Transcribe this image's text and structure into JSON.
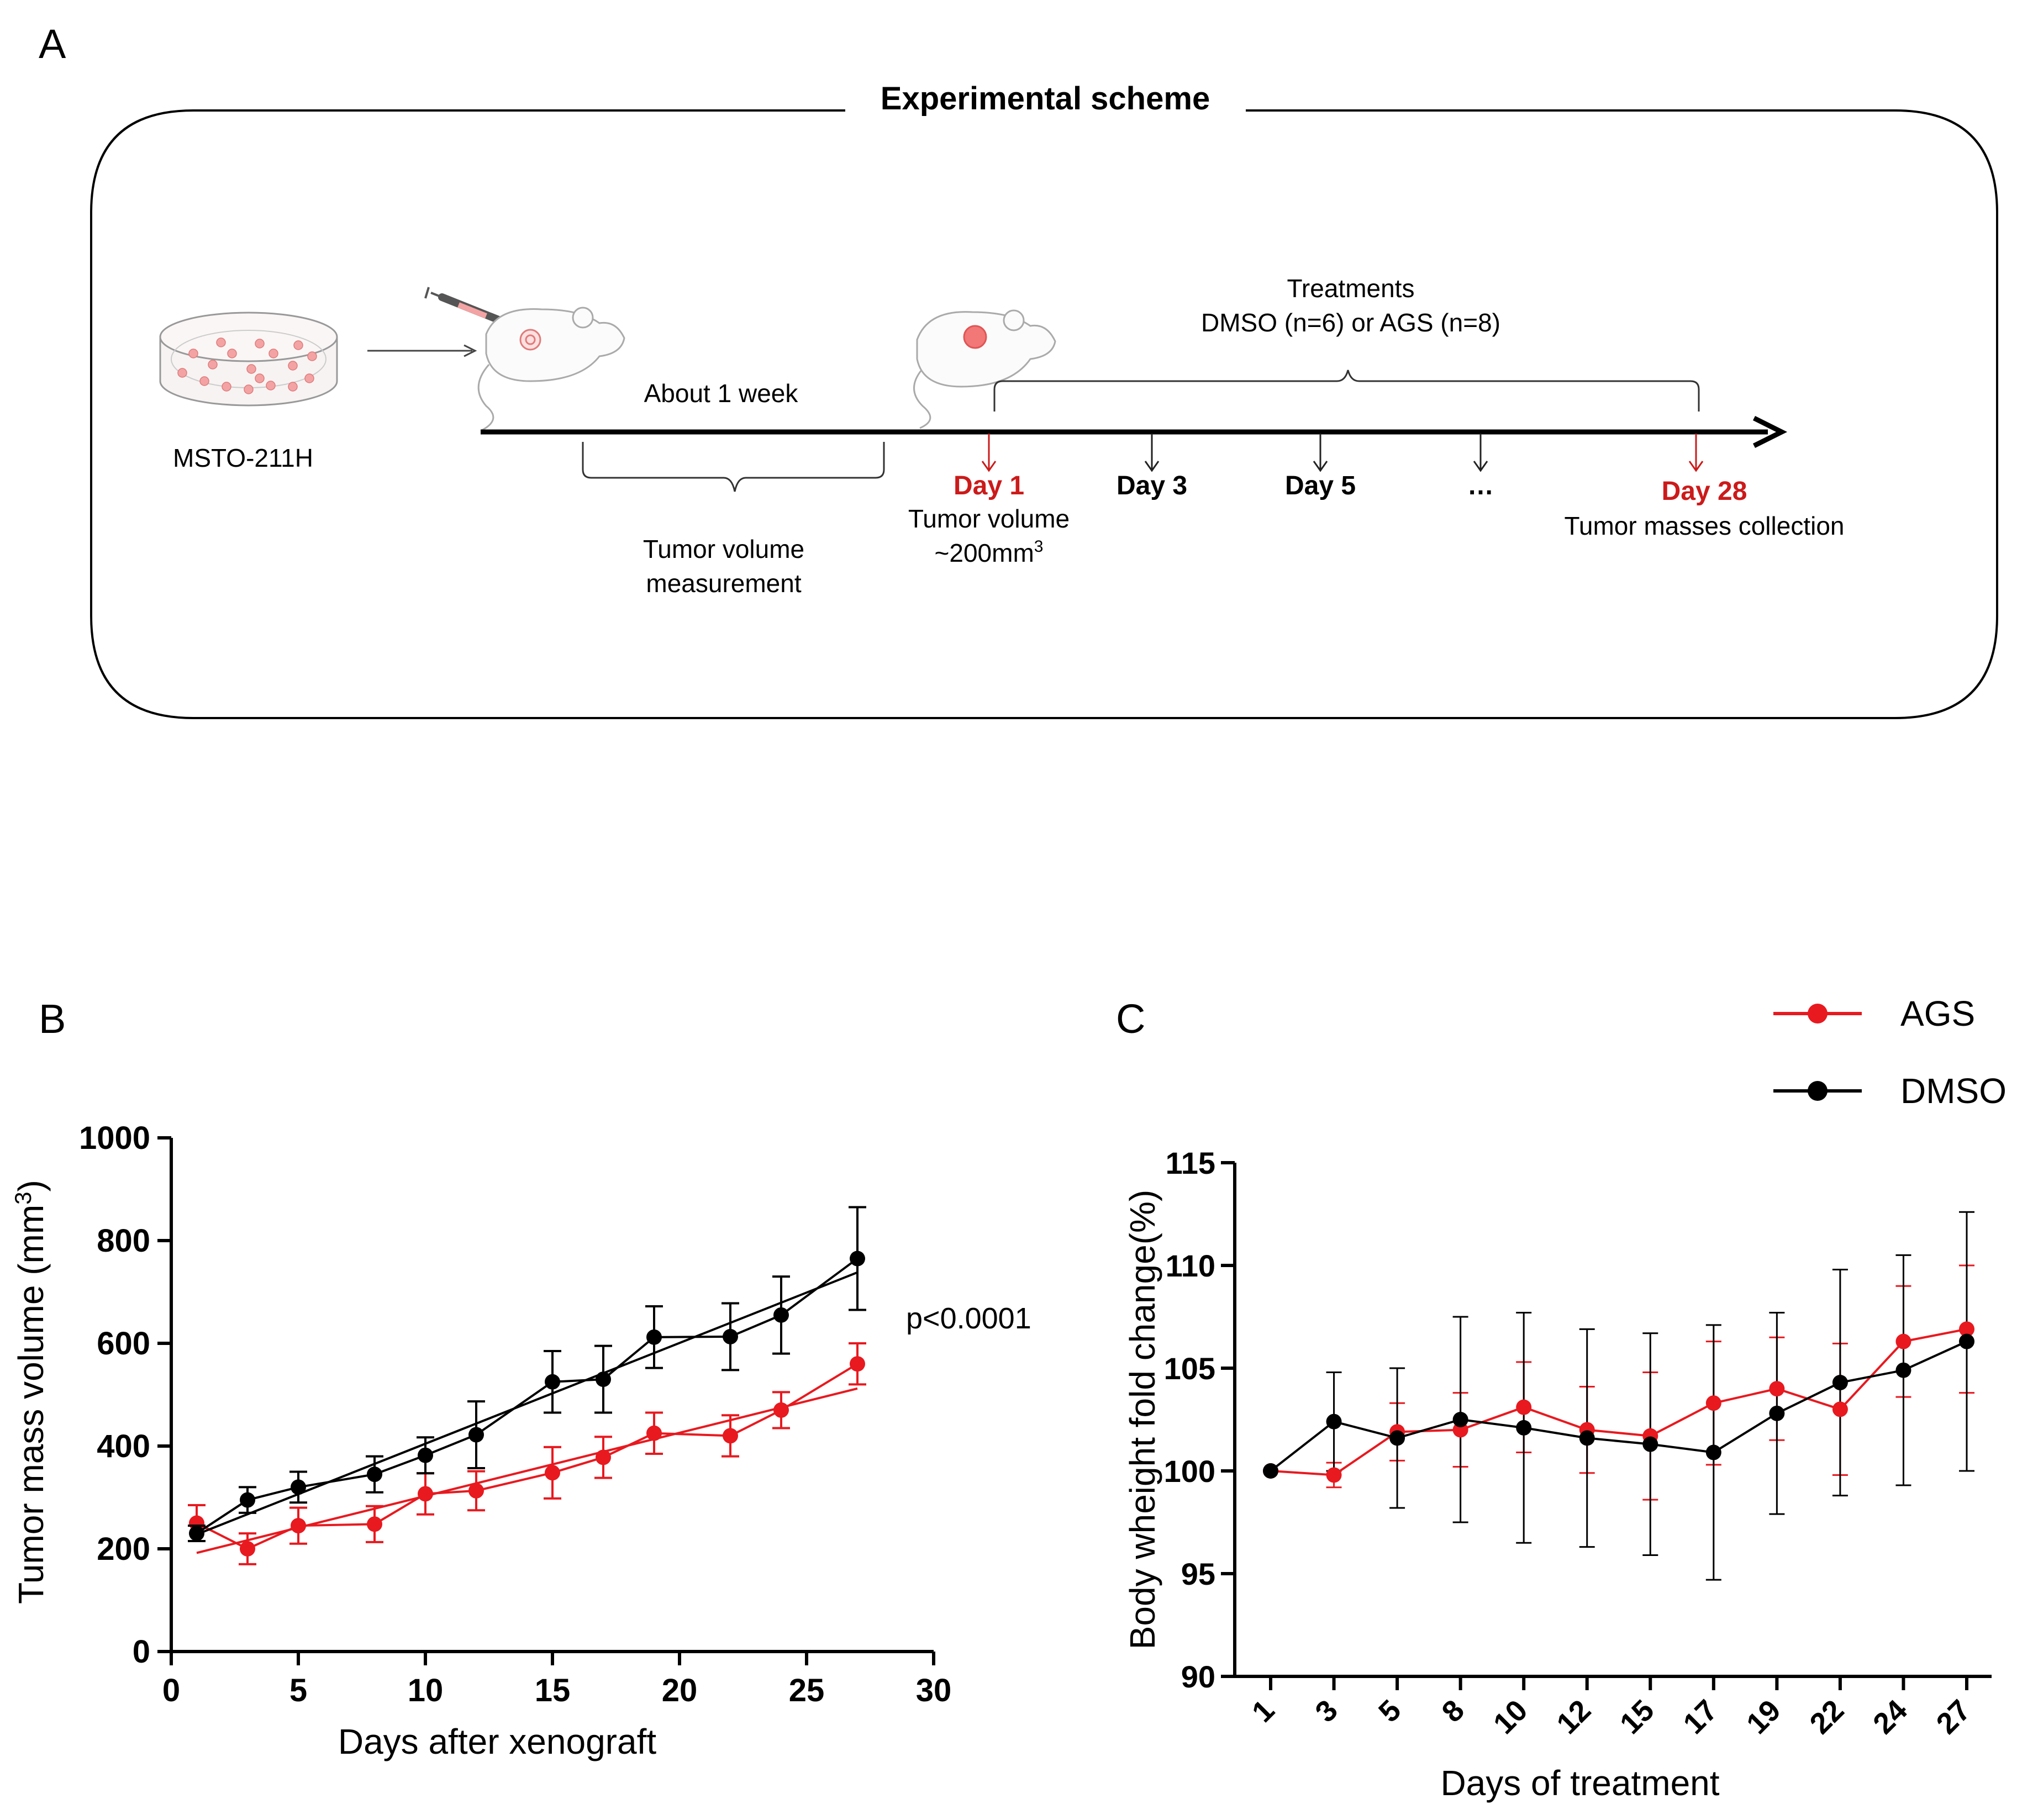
{
  "colors": {
    "ags": "#e8191f",
    "dmso": "#000000",
    "highlight": "#cc1a1a",
    "dish": "#f3a3a3"
  },
  "panel_a": {
    "letter": "A",
    "title": "Experimental scheme",
    "cell_line": "MSTO-211H",
    "about_week": "About 1 week",
    "treatments_line1": "Treatments",
    "treatments_line2": "DMSO (n=6) or AGS (n=8)",
    "tumor_volume_measurement_1": "Tumor volume",
    "tumor_volume_measurement_2": "measurement",
    "day1": "Day 1",
    "day1_note_1": "Tumor volume",
    "day1_note_2": "~200mm",
    "day1_note_sup": "3",
    "day3": "Day 3",
    "day5": "Day 5",
    "ellipsis": "…",
    "day28": "Day 28",
    "day28_note": "Tumor masses collection"
  },
  "legend": {
    "items": [
      {
        "label": "AGS",
        "series": "ags"
      },
      {
        "label": "DMSO",
        "series": "dmso"
      }
    ]
  },
  "chart_data": [
    {
      "panel": "B",
      "type": "line",
      "xlabel": "Days after xenograft",
      "ylabel": "Tumor mass volume  (mm",
      "ylabel_sup": "3",
      "ylabel_close": ")",
      "xlim": [
        0,
        30
      ],
      "ylim": [
        0,
        1000
      ],
      "xticks": [
        0,
        5,
        10,
        15,
        20,
        25,
        30
      ],
      "yticks": [
        0,
        200,
        400,
        600,
        800,
        1000
      ],
      "annotation": "p<0.0001",
      "series": [
        {
          "name": "AGS",
          "color": "#e8191f",
          "x": [
            1,
            3,
            5,
            8,
            10,
            12,
            15,
            17,
            19,
            22,
            24,
            27
          ],
          "y": [
            250,
            200,
            245,
            248,
            307,
            313,
            348,
            378,
            425,
            420,
            470,
            560
          ],
          "err": [
            35,
            30,
            35,
            35,
            40,
            38,
            50,
            40,
            40,
            40,
            35,
            40
          ],
          "fit": [
            [
              1,
              192
            ],
            [
              27,
              512
            ]
          ]
        },
        {
          "name": "DMSO",
          "color": "#000000",
          "x": [
            1,
            3,
            5,
            8,
            10,
            12,
            15,
            17,
            19,
            22,
            24,
            27
          ],
          "y": [
            230,
            295,
            320,
            345,
            382,
            422,
            525,
            530,
            612,
            613,
            655,
            765
          ],
          "err": [
            15,
            25,
            30,
            35,
            35,
            65,
            60,
            65,
            60,
            65,
            75,
            100
          ],
          "fit": [
            [
              1,
              228
            ],
            [
              27,
              738
            ]
          ]
        }
      ]
    },
    {
      "panel": "C",
      "type": "line",
      "xlabel": "Days of treatment",
      "ylabel": "Body wheight fold change(%)",
      "ylim": [
        90,
        115
      ],
      "yticks": [
        90,
        95,
        100,
        105,
        110,
        115
      ],
      "categories": [
        "1",
        "3",
        "5",
        "8",
        "10",
        "12",
        "15",
        "17",
        "19",
        "22",
        "24",
        "27"
      ],
      "series": [
        {
          "name": "AGS",
          "color": "#e8191f",
          "values": [
            100,
            99.8,
            101.9,
            102,
            103.1,
            102,
            101.7,
            103.3,
            104,
            103,
            106.3,
            106.9
          ],
          "err": [
            0,
            0.6,
            1.4,
            1.8,
            2.2,
            2.1,
            3.1,
            3.0,
            2.5,
            3.2,
            2.7,
            3.1
          ]
        },
        {
          "name": "DMSO",
          "color": "#000000",
          "values": [
            100,
            102.4,
            101.6,
            102.5,
            102.1,
            101.6,
            101.3,
            100.9,
            102.8,
            104.3,
            104.9,
            106.3
          ],
          "err": [
            0,
            2.4,
            3.4,
            5.0,
            5.6,
            5.3,
            5.4,
            6.2,
            4.9,
            5.5,
            5.6,
            6.3
          ]
        }
      ]
    }
  ]
}
